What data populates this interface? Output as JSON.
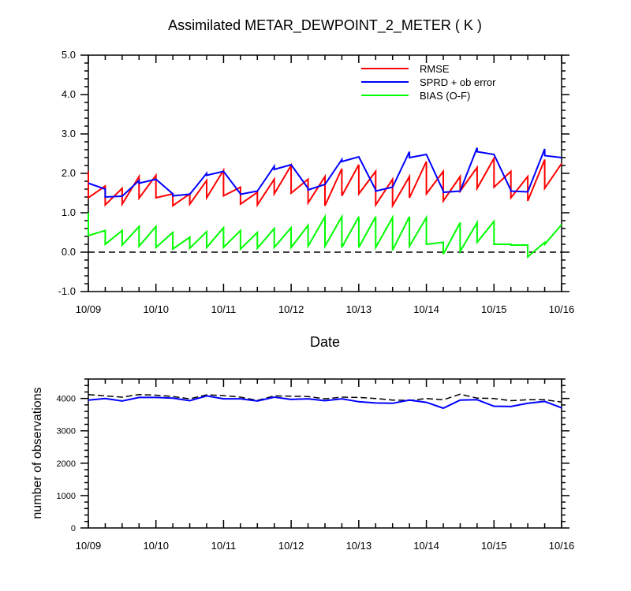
{
  "title": "Assimilated METAR_DEWPOINT_2_METER ( K )",
  "chart_data": [
    {
      "type": "line",
      "title": "Assimilated METAR_DEWPOINT_2_METER ( K )",
      "xlabel": "Date",
      "ylabel": "",
      "x_tick_labels": [
        "10/09",
        "10/10",
        "10/11",
        "10/12",
        "10/13",
        "10/14",
        "10/15",
        "10/16"
      ],
      "xlim_days": [
        0,
        7
      ],
      "ylim": [
        -1.0,
        5.0
      ],
      "y_ticks": [
        -1.0,
        0.0,
        1.0,
        2.0,
        3.0,
        4.0,
        5.0
      ],
      "y_tick_labels": [
        "-1.0",
        "0.0",
        "1.0",
        "2.0",
        "3.0",
        "4.0",
        "5.0"
      ],
      "zero_line": "dashed",
      "legend_position": "top-right",
      "series": [
        {
          "name": "RMSE",
          "color": "#ff0000",
          "x": [
            0,
            0,
            0.25,
            0.25,
            0.5,
            0.5,
            0.75,
            0.75,
            1.0,
            1.0,
            1.25,
            1.25,
            1.5,
            1.5,
            1.75,
            1.75,
            2.0,
            2.0,
            2.25,
            2.25,
            2.5,
            2.5,
            2.75,
            2.75,
            3.0,
            3.0,
            3.25,
            3.25,
            3.5,
            3.5,
            3.75,
            3.75,
            4.0,
            4.0,
            4.25,
            4.25,
            4.5,
            4.5,
            4.75,
            4.75,
            5.0,
            5.0,
            5.25,
            5.25,
            5.5,
            5.5,
            5.75,
            5.75,
            6.0,
            6.0,
            6.25,
            6.25,
            6.5,
            6.5,
            6.75,
            6.75,
            7.0
          ],
          "y": [
            2.05,
            1.38,
            1.68,
            1.2,
            1.62,
            1.22,
            1.92,
            1.37,
            1.95,
            1.38,
            1.48,
            1.18,
            1.48,
            1.22,
            1.82,
            1.38,
            2.08,
            1.43,
            1.65,
            1.22,
            1.52,
            1.2,
            1.85,
            1.48,
            2.2,
            1.5,
            1.85,
            1.25,
            1.92,
            1.18,
            2.12,
            1.43,
            2.22,
            1.48,
            2.05,
            1.2,
            1.85,
            1.18,
            1.92,
            1.38,
            2.3,
            1.48,
            2.05,
            1.3,
            1.92,
            1.55,
            2.15,
            1.62,
            2.38,
            1.65,
            2.05,
            1.38,
            1.92,
            1.3,
            2.35,
            1.62,
            2.25
          ]
        },
        {
          "name": "SPRD + ob error",
          "color": "#0000ff",
          "x": [
            0,
            0.25,
            0.25,
            0.5,
            0.75,
            0.75,
            1.0,
            1.25,
            1.25,
            1.5,
            1.75,
            1.75,
            2.0,
            2.25,
            2.25,
            2.5,
            2.75,
            2.75,
            3.0,
            3.25,
            3.25,
            3.5,
            3.75,
            3.75,
            4.0,
            4.25,
            4.25,
            4.5,
            4.75,
            4.75,
            5.0,
            5.25,
            5.25,
            5.5,
            5.75,
            5.75,
            6.0,
            6.25,
            6.25,
            6.5,
            6.75,
            6.75,
            7.0
          ],
          "y": [
            1.75,
            1.6,
            1.4,
            1.42,
            1.82,
            1.75,
            1.85,
            1.48,
            1.43,
            1.47,
            2.0,
            1.95,
            2.05,
            1.48,
            1.47,
            1.55,
            2.18,
            2.1,
            2.22,
            1.62,
            1.58,
            1.72,
            2.35,
            2.3,
            2.42,
            1.58,
            1.55,
            1.65,
            2.55,
            2.4,
            2.48,
            1.55,
            1.52,
            1.55,
            2.65,
            2.55,
            2.48,
            1.57,
            1.55,
            1.53,
            2.62,
            2.45,
            2.4
          ]
        },
        {
          "name": "BIAS (O-F)",
          "color": "#00ff00",
          "x": [
            0,
            0,
            0.25,
            0.25,
            0.5,
            0.5,
            0.75,
            0.75,
            1.0,
            1.0,
            1.25,
            1.25,
            1.5,
            1.5,
            1.75,
            1.75,
            2.0,
            2.0,
            2.25,
            2.25,
            2.5,
            2.5,
            2.75,
            2.75,
            3.0,
            3.0,
            3.25,
            3.25,
            3.5,
            3.5,
            3.75,
            3.75,
            4.0,
            4.0,
            4.25,
            4.25,
            4.5,
            4.5,
            4.75,
            4.75,
            5.0,
            5.0,
            5.25,
            5.25,
            5.5,
            5.5,
            5.75,
            5.75,
            6.0,
            6.0,
            6.25,
            6.25,
            6.5,
            6.5,
            6.75,
            6.75,
            7.0
          ],
          "y": [
            1.0,
            0.42,
            0.55,
            0.2,
            0.55,
            0.18,
            0.65,
            0.15,
            0.65,
            0.12,
            0.5,
            0.08,
            0.38,
            0.1,
            0.52,
            0.12,
            0.62,
            0.12,
            0.55,
            0.08,
            0.5,
            0.1,
            0.6,
            0.12,
            0.62,
            0.12,
            0.68,
            0.15,
            0.9,
            0.15,
            0.9,
            0.12,
            0.9,
            0.12,
            0.9,
            0.12,
            0.88,
            0.05,
            0.9,
            0.15,
            0.88,
            0.2,
            0.25,
            -0.05,
            0.75,
            0.02,
            0.75,
            0.25,
            0.78,
            0.2,
            0.2,
            0.18,
            0.18,
            -0.12,
            0.25,
            0.2,
            0.7
          ]
        }
      ]
    },
    {
      "type": "line",
      "title": "",
      "xlabel": "",
      "ylabel": "number of observations",
      "x_tick_labels": [
        "10/09",
        "10/10",
        "10/11",
        "10/12",
        "10/13",
        "10/14",
        "10/15",
        "10/16"
      ],
      "xlim_days": [
        0,
        7
      ],
      "ylim": [
        0,
        4600
      ],
      "y_ticks": [
        0,
        1000,
        2000,
        3000,
        4000
      ],
      "y_tick_labels": [
        "0",
        "1000",
        "2000",
        "3000",
        "4000"
      ],
      "series": [
        {
          "style": "dashed",
          "color": "#000000",
          "x": [
            0,
            0.25,
            0.5,
            0.75,
            1.0,
            1.25,
            1.5,
            1.75,
            2.0,
            2.25,
            2.5,
            2.75,
            3.0,
            3.25,
            3.5,
            3.75,
            4.0,
            4.25,
            4.5,
            4.75,
            5.0,
            5.25,
            5.5,
            5.75,
            6.0,
            6.25,
            6.5,
            6.75,
            7.0
          ],
          "y": [
            4120,
            4080,
            4040,
            4120,
            4100,
            4060,
            3990,
            4110,
            4090,
            4040,
            3940,
            4080,
            4070,
            4060,
            3990,
            4040,
            4030,
            4000,
            3950,
            3940,
            4000,
            3960,
            4130,
            4010,
            4000,
            3930,
            3960,
            3960,
            3890
          ]
        },
        {
          "style": "solid",
          "color": "#0000ff",
          "x": [
            0,
            0.25,
            0.5,
            0.75,
            1.0,
            1.25,
            1.5,
            1.75,
            2.0,
            2.25,
            2.5,
            2.75,
            3.0,
            3.25,
            3.5,
            3.75,
            4.0,
            4.25,
            4.5,
            4.75,
            5.0,
            5.25,
            5.5,
            5.75,
            6.0,
            6.25,
            6.5,
            6.75,
            7.0
          ],
          "y": [
            3950,
            4000,
            3920,
            4030,
            4030,
            4010,
            3930,
            4080,
            3990,
            3990,
            3920,
            4040,
            3970,
            3990,
            3930,
            3990,
            3900,
            3860,
            3850,
            3950,
            3880,
            3700,
            3950,
            3960,
            3760,
            3750,
            3850,
            3910,
            3710
          ]
        }
      ]
    }
  ]
}
